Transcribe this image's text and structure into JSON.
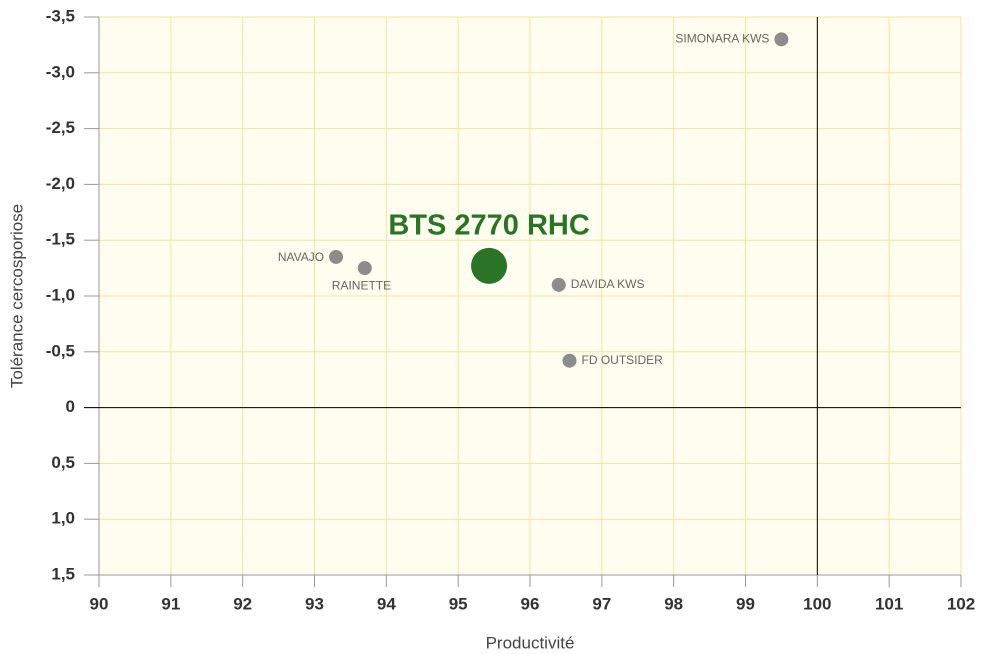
{
  "chart_data": {
    "type": "scatter",
    "xlabel": "Productivité",
    "ylabel": "Tolérance cercosporiose",
    "xlim": [
      90,
      102
    ],
    "xticks": [
      90,
      91,
      92,
      93,
      94,
      95,
      96,
      97,
      98,
      99,
      100,
      101,
      102
    ],
    "ylim": [
      1.5,
      -3.5
    ],
    "yticks": [
      {
        "value": 1.5,
        "label": "1,5"
      },
      {
        "value": 1.0,
        "label": "1,0"
      },
      {
        "value": 0.5,
        "label": "0,5"
      },
      0,
      {
        "value": -0.5,
        "label": "-0,5"
      },
      {
        "value": -1.0,
        "label": "-1,0"
      },
      {
        "value": -1.5,
        "label": "-1,5"
      },
      {
        "value": -2.0,
        "label": "-2,0"
      },
      {
        "value": -2.5,
        "label": "-2,5"
      },
      {
        "value": -3.0,
        "label": "-3,0"
      },
      {
        "value": -3.5,
        "label": "-3,5"
      }
    ],
    "grid": true,
    "crosshair": {
      "x": 100,
      "y": 0
    },
    "points_color": "#8c8c8c",
    "points": [
      {
        "label": "SIMONARA KWS",
        "x": 99.5,
        "y": -3.3
      },
      {
        "label": "NAVAJO",
        "x": 93.3,
        "y": -1.35
      },
      {
        "label": "RAINETTE",
        "x": 93.7,
        "y": -1.25
      },
      {
        "label": "DAVIDA KWS",
        "x": 96.4,
        "y": -1.1
      },
      {
        "label": "FD OUTSIDER",
        "x": 96.55,
        "y": -0.42
      }
    ],
    "highlight": {
      "label": "BTS 2770 RHC",
      "x": 95.43,
      "y": -1.27,
      "color": "#2a7327"
    }
  }
}
